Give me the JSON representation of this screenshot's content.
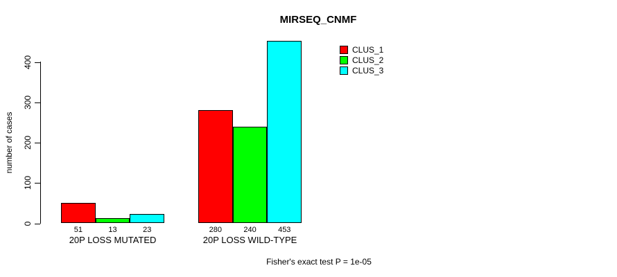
{
  "chart_data": {
    "type": "bar",
    "title": "MIRSEQ_CNMF",
    "xlabel": "",
    "ylabel": "number of cases",
    "categories": [
      "20P LOSS MUTATED",
      "20P LOSS WILD-TYPE"
    ],
    "series": [
      {
        "name": "CLUS_1",
        "color": "#ff0000",
        "values": [
          51,
          280
        ]
      },
      {
        "name": "CLUS_2",
        "color": "#00ff00",
        "values": [
          13,
          240
        ]
      },
      {
        "name": "CLUS_3",
        "color": "#00ffff",
        "values": [
          23,
          453
        ]
      }
    ],
    "yticks": [
      0,
      100,
      200,
      300,
      400
    ],
    "ylim": [
      0,
      453
    ],
    "grid": false,
    "legend_position": "top-right",
    "bar_border_color": "#000000",
    "bar_value_labels_shown": true
  },
  "caption": "Fisher's exact test P = 1e-05"
}
